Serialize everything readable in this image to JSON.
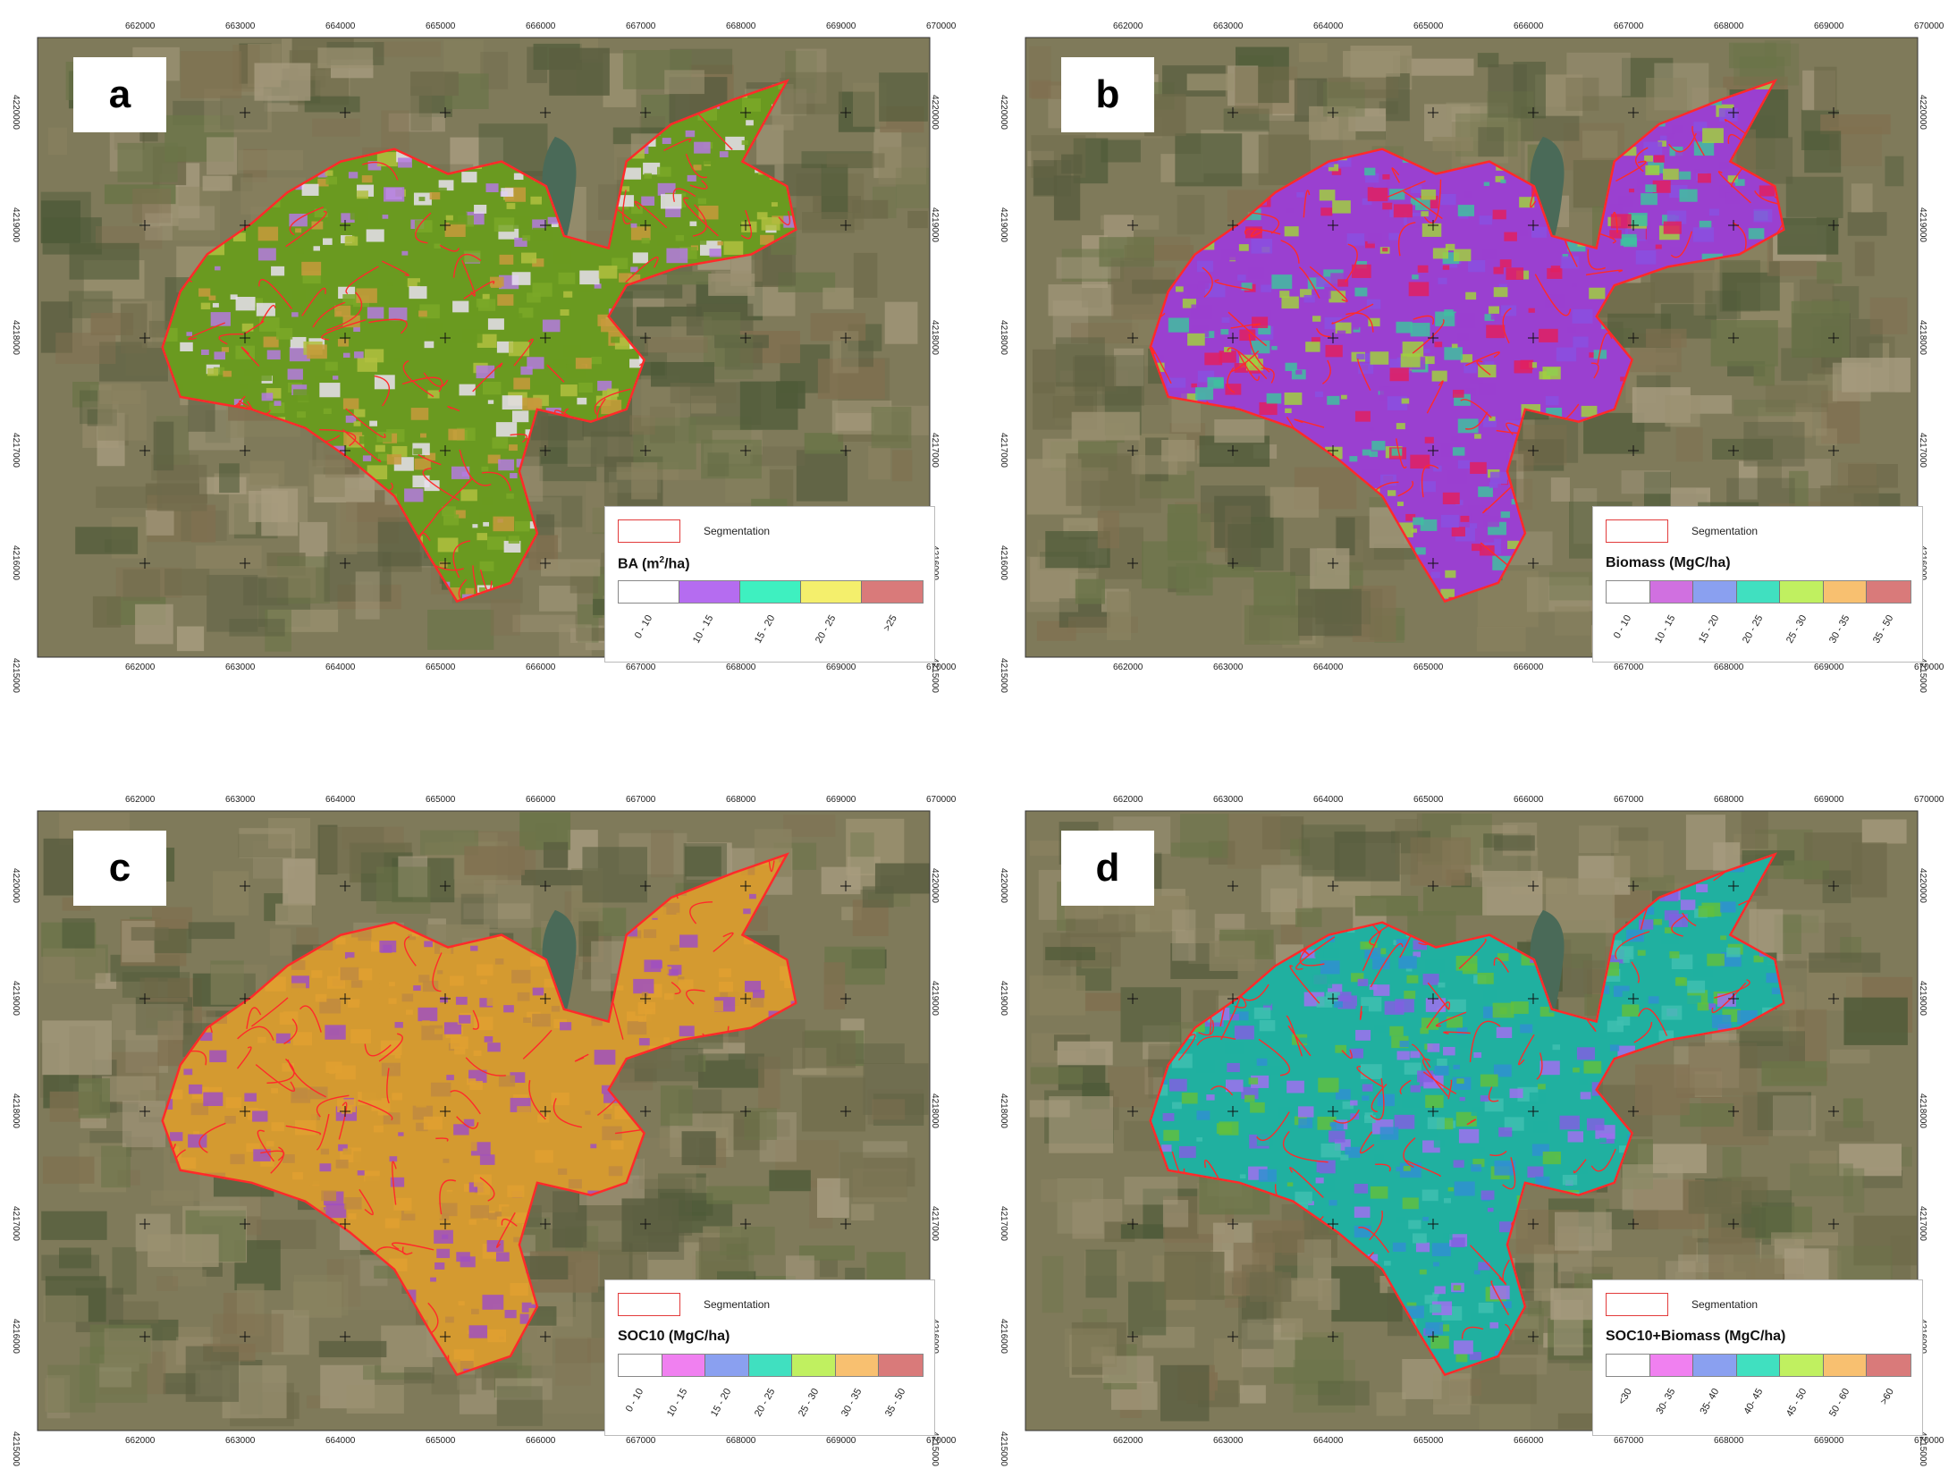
{
  "x_ticks": [
    "662000",
    "663000",
    "664000",
    "665000",
    "666000",
    "667000",
    "668000",
    "669000",
    "670000"
  ],
  "y_ticks": [
    "4220000",
    "4219000",
    "4218000",
    "4217000",
    "4216000",
    "4215000"
  ],
  "segmentation_label": "Segmentation",
  "panels": [
    {
      "letter": "a",
      "legend_title": "BA (m",
      "legend_title_sup": "2",
      "legend_title_end": "/ha)",
      "classes": [
        "0 - 10",
        "10 - 15",
        "15 - 20",
        "20 - 25",
        ">25"
      ],
      "colors": [
        "#ffffff",
        "#b56cf0",
        "#3ef0c0",
        "#f4ef6c",
        "#d97a7a"
      ],
      "fill_colors": [
        "#6a9a20",
        "#7aa828",
        "#b0c040",
        "#c79a3c",
        "#b47ae0",
        "#e8e0f0"
      ]
    },
    {
      "letter": "b",
      "legend_title": "Biomass (MgC/ha)",
      "legend_title_sup": "",
      "legend_title_end": "",
      "classes": [
        "0 - 10",
        "10 - 15",
        "15 - 20",
        "20 - 25",
        "25 - 30",
        "30 - 35",
        "35 - 50"
      ],
      "colors": [
        "#ffffff",
        "#d070e0",
        "#8aa0f0",
        "#40e0c0",
        "#c0f060",
        "#f8c070",
        "#d97a7a"
      ],
      "fill_colors": [
        "#9a40d0",
        "#8a50e0",
        "#40c0a0",
        "#a0d040",
        "#e02060"
      ]
    },
    {
      "letter": "c",
      "legend_title": "SOC10 (MgC/ha)",
      "legend_title_sup": "",
      "legend_title_end": "",
      "classes": [
        "0 - 10",
        "10 - 15",
        "15 - 20",
        "20 - 25",
        "25 - 30",
        "30 - 35",
        "35 - 50"
      ],
      "colors": [
        "#ffffff",
        "#f080f0",
        "#8aa0f0",
        "#40e0c0",
        "#c0f060",
        "#f8c070",
        "#d97a7a"
      ],
      "fill_colors": [
        "#d49a30",
        "#e0a030",
        "#c08a40",
        "#a050c0"
      ]
    },
    {
      "letter": "d",
      "legend_title": "SOC10+Biomass (MgC/ha)",
      "legend_title_sup": "",
      "legend_title_end": "",
      "classes": [
        "<30",
        "30- 35",
        "35- 40",
        "40- 45",
        "45 - 50",
        "50 - 60",
        ">60"
      ],
      "colors": [
        "#ffffff",
        "#f080f0",
        "#8aa0f0",
        "#40e0c0",
        "#c0f060",
        "#f8c070",
        "#d97a7a"
      ],
      "fill_colors": [
        "#20b0a0",
        "#40c0b0",
        "#8060e0",
        "#a070f0",
        "#60c040",
        "#3090d0"
      ]
    }
  ]
}
